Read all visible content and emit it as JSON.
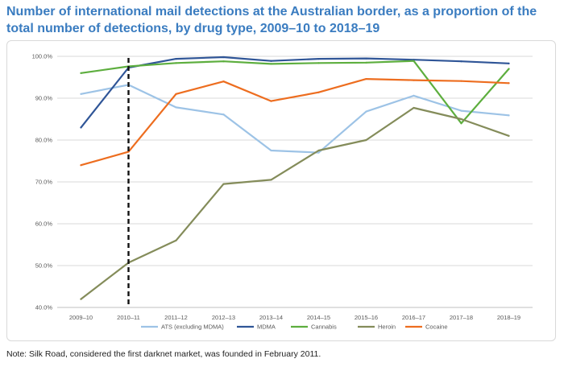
{
  "title": "Number of international mail detections at the Australian border, as a proportion of the total number of detections, by drug type, 2009–10 to 2018–19",
  "note": "Note: Silk Road, considered the first darknet market, was founded in February 2011.",
  "chart_data": {
    "type": "line",
    "title": "Number of international mail detections at the Australian border, as a proportion of the total number of detections, by drug type, 2009–10 to 2018–19",
    "xlabel": "",
    "ylabel": "",
    "categories": [
      "2009–10",
      "2010–11",
      "2011–12",
      "2012–13",
      "2013–14",
      "2014–15",
      "2015–16",
      "2016–17",
      "2017–18",
      "2018–19"
    ],
    "ylim": [
      40,
      100
    ],
    "yticks": [
      40,
      50,
      60,
      70,
      80,
      90,
      100
    ],
    "ytick_labels": [
      "40.0%",
      "50.0%",
      "60.0%",
      "70.0%",
      "80.0%",
      "90.0%",
      "100.0%"
    ],
    "grid": true,
    "legend_position": "bottom",
    "annotation": {
      "type": "vertical-dashed-line",
      "at_category": "2010–11",
      "meaning": "Silk Road founded"
    },
    "series": [
      {
        "name": "ATS (excluding MDMA)",
        "color": "#9dc3e6",
        "values": [
          91.0,
          93.2,
          87.8,
          86.1,
          77.5,
          77.0,
          86.8,
          90.6,
          87.0,
          85.9
        ]
      },
      {
        "name": "MDMA",
        "color": "#2f5597",
        "values": [
          83.0,
          97.3,
          99.4,
          99.8,
          98.9,
          99.4,
          99.5,
          99.2,
          98.8,
          98.3
        ]
      },
      {
        "name": "Cannabis",
        "color": "#5dae3e",
        "values": [
          96.0,
          97.6,
          98.4,
          98.8,
          98.2,
          98.4,
          98.5,
          98.9,
          84.0,
          97.0
        ]
      },
      {
        "name": "Heroin",
        "color": "#848c5a",
        "values": [
          42.0,
          50.7,
          56.0,
          69.5,
          70.5,
          77.5,
          80.0,
          87.7,
          85.0,
          81.0
        ]
      },
      {
        "name": "Cocaine",
        "color": "#ed6d1f",
        "values": [
          74.0,
          77.2,
          91.0,
          94.0,
          89.3,
          91.4,
          94.6,
          94.3,
          94.1,
          93.6
        ]
      }
    ]
  }
}
